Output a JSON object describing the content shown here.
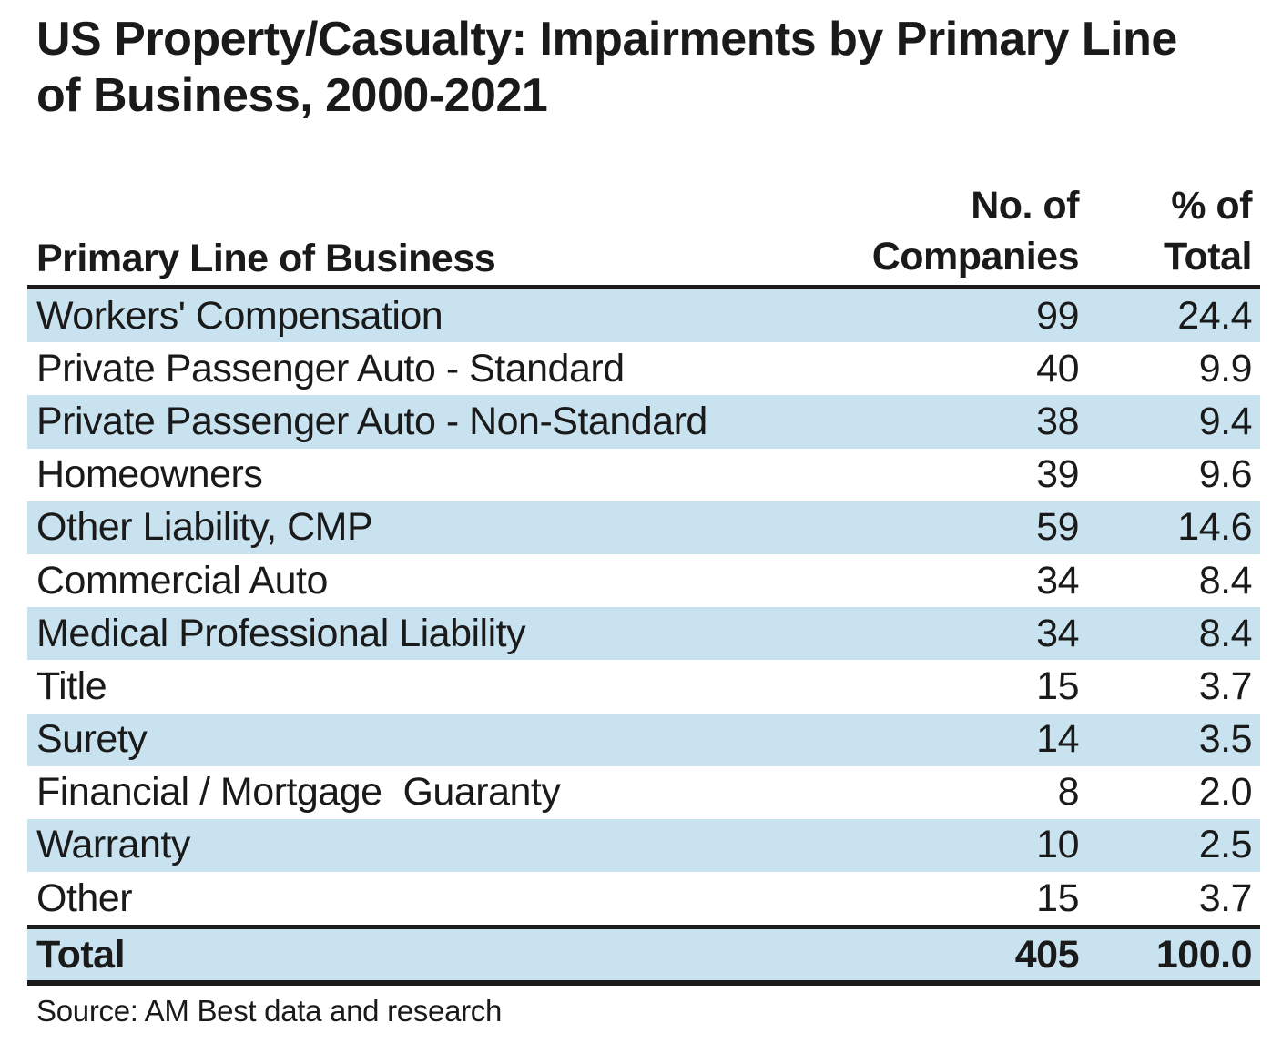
{
  "page": {
    "title_line1": "US Property/Casualty: Impairments by Primary Line",
    "title_line2": "of Business, 2000-2021",
    "source": "Source: AM Best data and research"
  },
  "table": {
    "col1_header": "Primary Line of Business",
    "col2_header_line1": "No. of",
    "col2_header_line2": "Companies",
    "col3_header_line1": "% of",
    "col3_header_line2": "Total",
    "rows": [
      {
        "line": "Workers' Compensation",
        "companies": "99",
        "pct": "24.4"
      },
      {
        "line": "Private Passenger Auto - Standard",
        "companies": "40",
        "pct": "9.9"
      },
      {
        "line": "Private Passenger Auto - Non-Standard",
        "companies": "38",
        "pct": "9.4"
      },
      {
        "line": "Homeowners",
        "companies": "39",
        "pct": "9.6"
      },
      {
        "line": "Other Liability, CMP",
        "companies": "59",
        "pct": "14.6"
      },
      {
        "line": "Commercial Auto",
        "companies": "34",
        "pct": "8.4"
      },
      {
        "line": "Medical Professional Liability",
        "companies": "34",
        "pct": "8.4"
      },
      {
        "line": "Title",
        "companies": "15",
        "pct": "3.7"
      },
      {
        "line": "Surety",
        "companies": "14",
        "pct": "3.5"
      },
      {
        "line": "Financial / Mortgage  Guaranty",
        "companies": "8",
        "pct": "2.0"
      },
      {
        "line": "Warranty",
        "companies": "10",
        "pct": "2.5"
      },
      {
        "line": "Other",
        "companies": "15",
        "pct": "3.7"
      }
    ],
    "total": {
      "line": "Total",
      "companies": "405",
      "pct": "100.0"
    }
  },
  "chart_data": {
    "type": "table",
    "title": "US Property/Casualty: Impairments by Primary Line of Business, 2000-2021",
    "columns": [
      "Primary Line of Business",
      "No. of Companies",
      "% of Total"
    ],
    "categories": [
      "Workers' Compensation",
      "Private Passenger Auto - Standard",
      "Private Passenger Auto - Non-Standard",
      "Homeowners",
      "Other Liability, CMP",
      "Commercial Auto",
      "Medical Professional Liability",
      "Title",
      "Surety",
      "Financial / Mortgage Guaranty",
      "Warranty",
      "Other"
    ],
    "series": [
      {
        "name": "No. of Companies",
        "values": [
          99,
          40,
          38,
          39,
          59,
          34,
          34,
          15,
          14,
          8,
          10,
          15
        ]
      },
      {
        "name": "% of Total",
        "values": [
          24.4,
          9.9,
          9.4,
          9.6,
          14.6,
          8.4,
          8.4,
          3.7,
          3.5,
          2.0,
          2.5,
          3.7
        ]
      }
    ],
    "total": {
      "no_of_companies": 405,
      "pct_of_total": 100.0
    },
    "source": "Source: AM Best data and research"
  },
  "colors": {
    "stripe": "#C8E3EF",
    "text": "#1A1A1A",
    "rule": "#1A1A1A",
    "background": "#FFFFFF"
  }
}
